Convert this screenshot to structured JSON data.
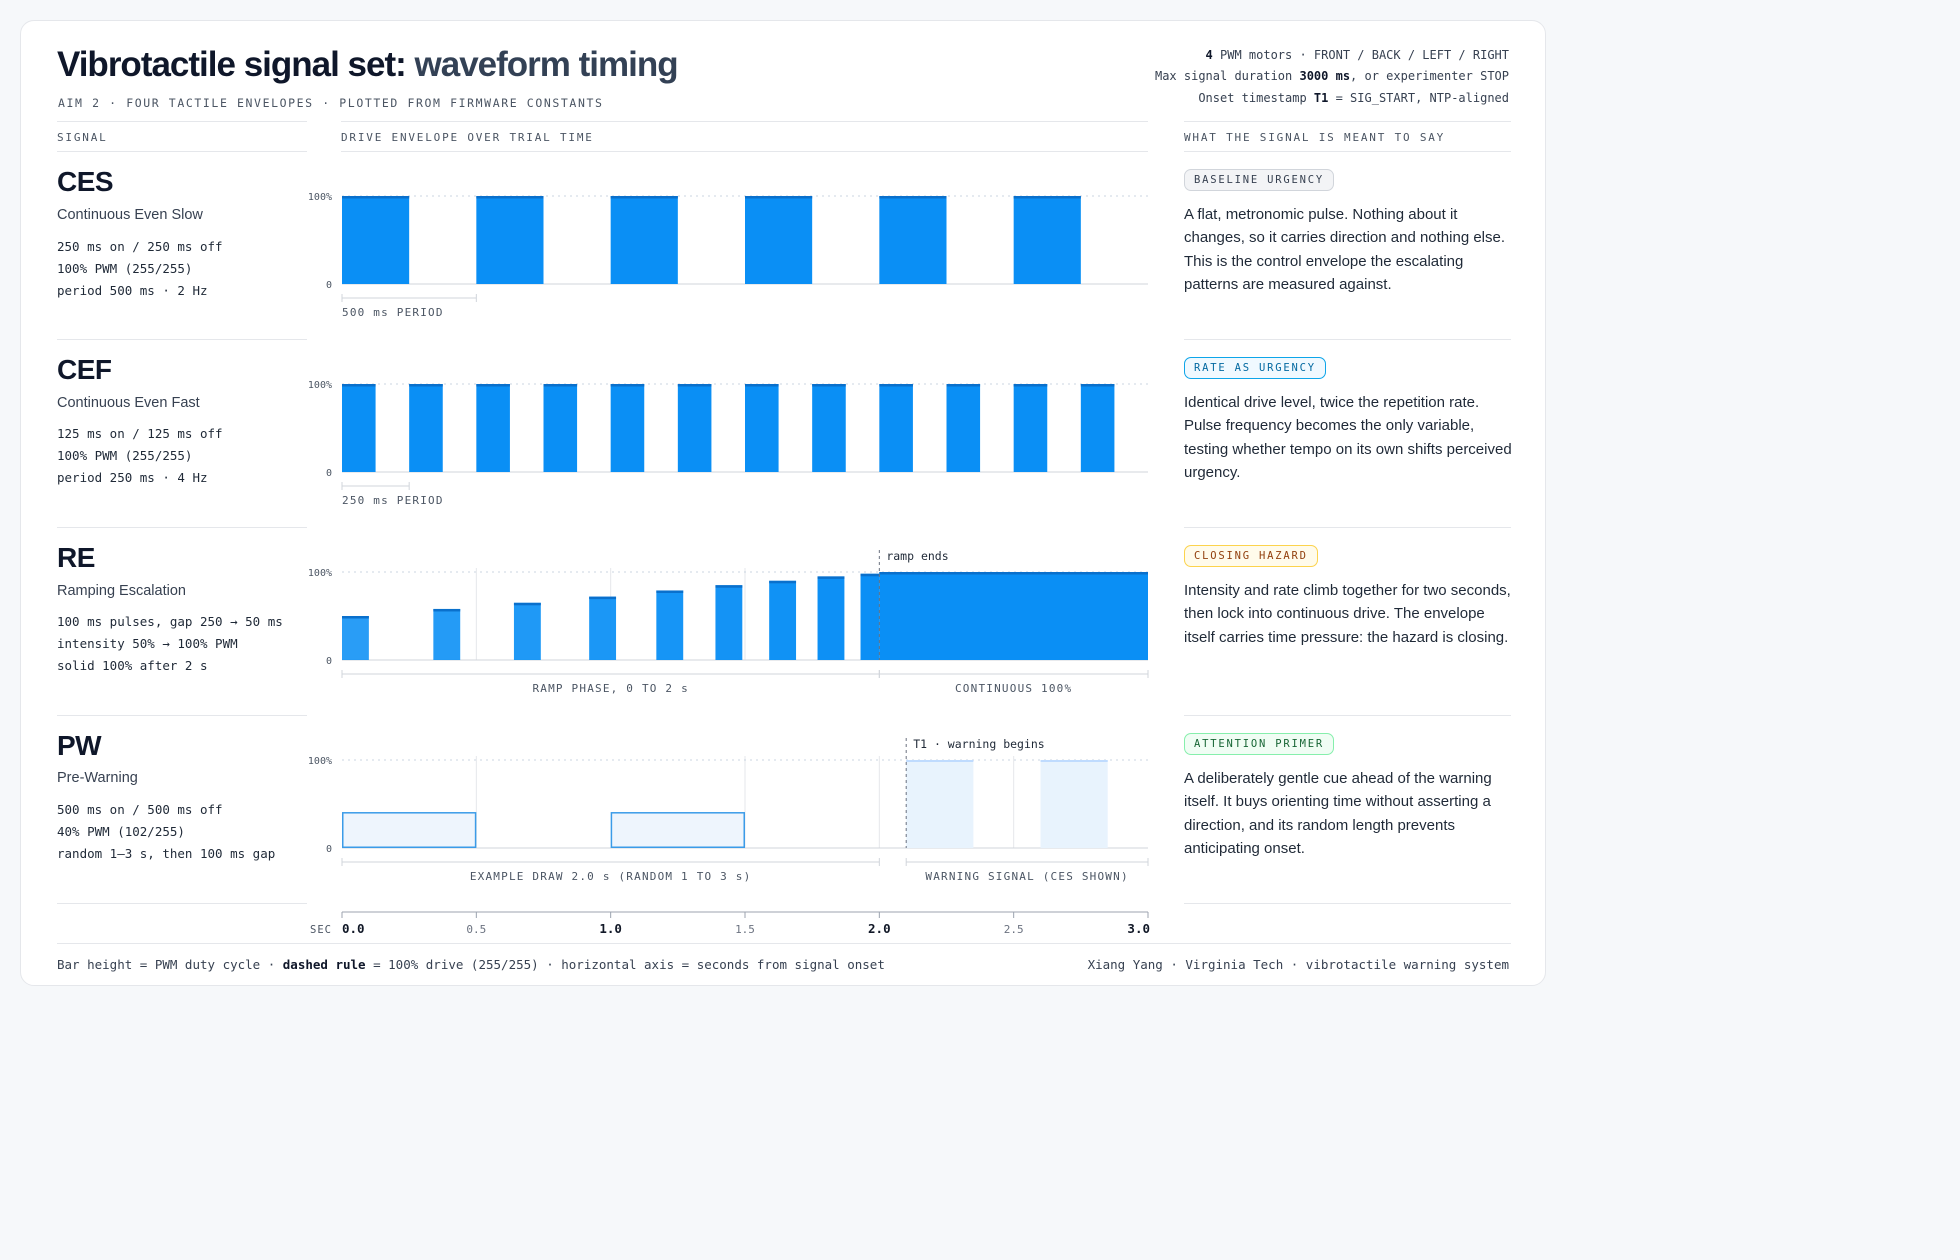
{
  "header": {
    "title_main": "Vibrotactile signal set: ",
    "title_accent": "waveform timing",
    "subtitle": "AIM 2  ·  FOUR TACTILE ENVELOPES  ·  PLOTTED FROM FIRMWARE CONSTANTS"
  },
  "meta": {
    "line1_bold": "4",
    "line1_rest": " PWM motors  ·  FRONT / BACK / LEFT / RIGHT",
    "line2_pre": "Max signal duration ",
    "line2_bold": "3000 ms",
    "line2_post": ", or experimenter STOP",
    "line3_pre": "Onset timestamp ",
    "line3_bold": "T1",
    "line3_post": " = SIG_START, NTP-aligned"
  },
  "columns": {
    "signal": "SIGNAL",
    "envelope": "DRIVE ENVELOPE OVER TRIAL TIME",
    "meaning": "WHAT THE SIGNAL IS MEANT TO SAY"
  },
  "signals": [
    {
      "abbr": "CES",
      "name": "Continuous Even Slow",
      "spec": [
        "250 ms on / 250 ms off",
        "100% PWM (255/255)",
        "period 500 ms  ·  2 Hz"
      ],
      "badge": "BASELINE URGENCY",
      "badge_color": "#374151",
      "badge_bg": "#f3f4f6",
      "badge_border": "#d1d5db",
      "description": "A flat, metronomic pulse. Nothing about it changes, so it carries direction and nothing else. This is the control envelope the escalating patterns are measured against."
    },
    {
      "abbr": "CEF",
      "name": "Continuous Even Fast",
      "spec": [
        "125 ms on / 125 ms off",
        "100% PWM (255/255)",
        "period 250 ms  ·  4 Hz"
      ],
      "badge": "RATE AS URGENCY",
      "badge_color": "#0369a1",
      "badge_bg": "#f0f9ff",
      "badge_border": "#0ea5e9",
      "description": "Identical drive level, twice the repetition rate. Pulse frequency becomes the only variable, testing whether tempo on its own shifts perceived urgency."
    },
    {
      "abbr": "RE",
      "name": "Ramping Escalation",
      "spec": [
        "100 ms pulses, gap 250 → 50 ms",
        "intensity 50% → 100% PWM",
        "solid 100% after 2 s"
      ],
      "badge": "CLOSING HAZARD",
      "badge_color": "#92400e",
      "badge_bg": "#fffbeb",
      "badge_border": "#fcd34d",
      "description": "Intensity and rate climb together for two seconds, then lock into continuous drive. The envelope itself carries time pressure: the hazard is closing."
    },
    {
      "abbr": "PW",
      "name": "Pre-Warning",
      "spec": [
        "500 ms on / 500 ms off",
        "40% PWM (102/255)",
        "random 1–3 s, then 100 ms gap"
      ],
      "badge": "ATTENTION PRIMER",
      "badge_color": "#166534",
      "badge_bg": "#f0fdf4",
      "badge_border": "#86efac",
      "description": "A deliberately gentle cue ahead of the warning itself. It buys orienting time without asserting a direction, and its random length prevents anticipating onset."
    }
  ],
  "chart_data": {
    "type": "bar",
    "x_unit": "seconds from signal onset",
    "xlim": [
      0,
      3.0
    ],
    "ylim": [
      0,
      100
    ],
    "y_tick_labels": [
      "100%",
      "0"
    ],
    "x_axis_label": "SEC",
    "x_ticks": [
      {
        "value": 0.0,
        "label": "0.0",
        "major": true
      },
      {
        "value": 0.5,
        "label": "0.5",
        "major": false
      },
      {
        "value": 1.0,
        "label": "1.0",
        "major": true
      },
      {
        "value": 1.5,
        "label": "1.5",
        "major": false
      },
      {
        "value": 2.0,
        "label": "2.0",
        "major": true
      },
      {
        "value": 2.5,
        "label": "2.5",
        "major": false
      },
      {
        "value": 3.0,
        "label": "3.0",
        "major": true
      }
    ],
    "rows": [
      {
        "signal": "CES",
        "gridlines": [],
        "pulses": [
          {
            "start": 0.0,
            "end": 0.25,
            "level": 100
          },
          {
            "start": 0.5,
            "end": 0.75,
            "level": 100
          },
          {
            "start": 1.0,
            "end": 1.25,
            "level": 100
          },
          {
            "start": 1.5,
            "end": 1.75,
            "level": 100
          },
          {
            "start": 2.0,
            "end": 2.25,
            "level": 100
          },
          {
            "start": 2.5,
            "end": 2.75,
            "level": 100
          }
        ],
        "brackets": [
          {
            "start": 0.0,
            "end": 0.5,
            "label": "500 ms PERIOD",
            "align": "left"
          }
        ]
      },
      {
        "signal": "CEF",
        "gridlines": [],
        "pulses": [
          {
            "start": 0.0,
            "end": 0.125,
            "level": 100
          },
          {
            "start": 0.25,
            "end": 0.375,
            "level": 100
          },
          {
            "start": 0.5,
            "end": 0.625,
            "level": 100
          },
          {
            "start": 0.75,
            "end": 0.875,
            "level": 100
          },
          {
            "start": 1.0,
            "end": 1.125,
            "level": 100
          },
          {
            "start": 1.25,
            "end": 1.375,
            "level": 100
          },
          {
            "start": 1.5,
            "end": 1.625,
            "level": 100
          },
          {
            "start": 1.75,
            "end": 1.875,
            "level": 100
          },
          {
            "start": 2.0,
            "end": 2.125,
            "level": 100
          },
          {
            "start": 2.25,
            "end": 2.375,
            "level": 100
          },
          {
            "start": 2.5,
            "end": 2.625,
            "level": 100
          },
          {
            "start": 2.75,
            "end": 2.875,
            "level": 100
          }
        ],
        "brackets": [
          {
            "start": 0.0,
            "end": 0.25,
            "label": "250 ms PERIOD",
            "align": "left"
          }
        ]
      },
      {
        "signal": "RE",
        "gridlines": [
          0.5,
          1.0,
          1.5
        ],
        "pulses": [
          {
            "start": 0.0,
            "end": 0.1,
            "level": 50
          },
          {
            "start": 0.34,
            "end": 0.44,
            "level": 58
          },
          {
            "start": 0.64,
            "end": 0.74,
            "level": 65
          },
          {
            "start": 0.92,
            "end": 1.02,
            "level": 72
          },
          {
            "start": 1.17,
            "end": 1.27,
            "level": 79
          },
          {
            "start": 1.39,
            "end": 1.49,
            "level": 85
          },
          {
            "start": 1.59,
            "end": 1.69,
            "level": 90
          },
          {
            "start": 1.77,
            "end": 1.87,
            "level": 95
          },
          {
            "start": 1.93,
            "end": 2.0,
            "level": 98
          },
          {
            "start": 2.0,
            "end": 3.0,
            "level": 100,
            "solid": true
          }
        ],
        "marker": {
          "at": 2.0,
          "label": "ramp ends"
        },
        "brackets": [
          {
            "start": 0.0,
            "end": 2.0,
            "label": "RAMP PHASE, 0 TO 2 s",
            "align": "center"
          },
          {
            "start": 2.0,
            "end": 3.0,
            "label": "CONTINUOUS 100%",
            "align": "center"
          }
        ]
      },
      {
        "signal": "PW",
        "gridlines": [
          0.5,
          1.5,
          2.0,
          2.5
        ],
        "pulses": [
          {
            "start": 0.0,
            "end": 0.5,
            "level": 40,
            "style": "outline"
          },
          {
            "start": 1.0,
            "end": 1.5,
            "level": 40,
            "style": "outline"
          },
          {
            "start": 2.1,
            "end": 2.35,
            "level": 100,
            "style": "light"
          },
          {
            "start": 2.6,
            "end": 2.85,
            "level": 100,
            "style": "light"
          }
        ],
        "marker": {
          "at": 2.1,
          "label": "T1 · warning begins"
        },
        "brackets": [
          {
            "start": 0.0,
            "end": 2.0,
            "label": "EXAMPLE DRAW 2.0 s (RANDOM 1 TO 3 s)",
            "align": "center"
          },
          {
            "start": 2.1,
            "end": 3.0,
            "label": "WARNING SIGNAL (CES SHOWN)",
            "align": "center"
          }
        ]
      }
    ]
  },
  "footer": {
    "left_1": "Bar height = PWM duty cycle  ·  ",
    "left_bold": "dashed rule",
    "left_2": " = 100% drive (255/255)  ·  horizontal axis = seconds from signal onset",
    "right": "Xiang Yang  ·  Virginia Tech  ·  vibrotactile warning system"
  },
  "colors": {
    "pulse": "#0a8ff5",
    "pulse_top": "#0a70cc",
    "pulse_light_fill": "#e8f3fd",
    "pulse_outline_fill": "#eef5fd",
    "pulse_outline_stroke": "#3b9be8"
  }
}
